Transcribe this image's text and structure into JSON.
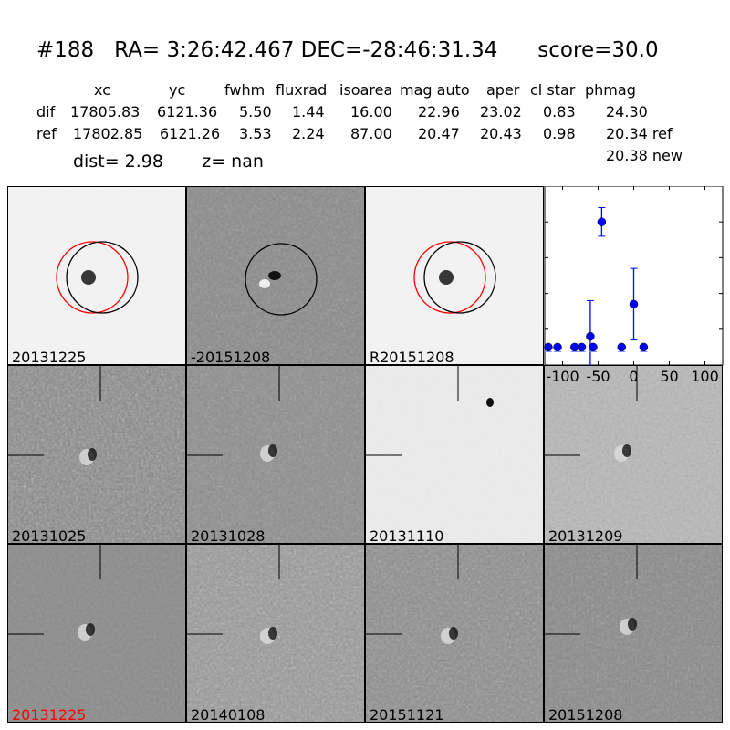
{
  "title": {
    "id": "#188",
    "ra": "RA= 3:26:42.467",
    "dec": "DEC=-28:46:31.34",
    "score": "score=30.0"
  },
  "table": {
    "headers": [
      "xc",
      "yc",
      "fwhm",
      "fluxrad",
      "isoarea",
      "mag auto",
      "aper",
      "cl star",
      "phmag"
    ],
    "rows": [
      {
        "label": "dif",
        "values": [
          "17805.83",
          "6121.36",
          "5.50",
          "1.44",
          "16.00",
          "22.96",
          "23.02",
          "0.83",
          "24.30"
        ]
      },
      {
        "label": "ref",
        "values": [
          "17802.85",
          "6121.26",
          "3.53",
          "2.24",
          "87.00",
          "20.47",
          "20.43",
          "0.98",
          "20.34 ref"
        ]
      }
    ],
    "extra_phmag": "20.38 new"
  },
  "dist": "dist=  2.98",
  "z": "z=   nan",
  "panels": [
    {
      "label": "20131225",
      "label_color": "#000000"
    },
    {
      "label": "-20151208",
      "label_color": "#000000"
    },
    {
      "label": "R20151208",
      "label_color": "#000000"
    },
    {
      "label": "20131025",
      "label_color": "#000000"
    },
    {
      "label": "20131028",
      "label_color": "#000000"
    },
    {
      "label": "20131110",
      "label_color": "#000000"
    },
    {
      "label": "20131209",
      "label_color": "#000000"
    },
    {
      "label": "20131225",
      "label_color": "#ff0000"
    },
    {
      "label": "20140108",
      "label_color": "#000000"
    },
    {
      "label": "20151121",
      "label_color": "#000000"
    },
    {
      "label": "20151208",
      "label_color": "#000000"
    }
  ],
  "colors": {
    "ref_circle": "#ff0000",
    "dif_circle": "#000000",
    "points": "#0000ff"
  },
  "chart_data": {
    "type": "scatter",
    "xlim": [
      -125,
      125
    ],
    "ylim": [
      26,
      21
    ],
    "y_inverted": true,
    "xticks": [
      "-100",
      "-50",
      "0",
      "50",
      "100"
    ],
    "xtick_values": [
      -100,
      -50,
      0,
      50,
      100
    ],
    "yticks": [
      "21",
      "22",
      "23",
      "24",
      "25",
      "26"
    ],
    "ytick_values": [
      21,
      22,
      23,
      24,
      25,
      26
    ],
    "points": [
      {
        "x": -120,
        "y": 25.5,
        "err": 0
      },
      {
        "x": -107,
        "y": 25.5,
        "err": 0
      },
      {
        "x": -83,
        "y": 25.5,
        "err": 0
      },
      {
        "x": -73,
        "y": 25.5,
        "err": 0
      },
      {
        "x": -61,
        "y": 25.2,
        "err": 1.0
      },
      {
        "x": -57,
        "y": 25.5,
        "err": 0
      },
      {
        "x": -45,
        "y": 22.0,
        "err": 0.4
      },
      {
        "x": -17,
        "y": 25.5,
        "err": 0
      },
      {
        "x": 0,
        "y": 24.3,
        "err": 1.0
      },
      {
        "x": 14,
        "y": 25.5,
        "err": 0
      }
    ]
  }
}
